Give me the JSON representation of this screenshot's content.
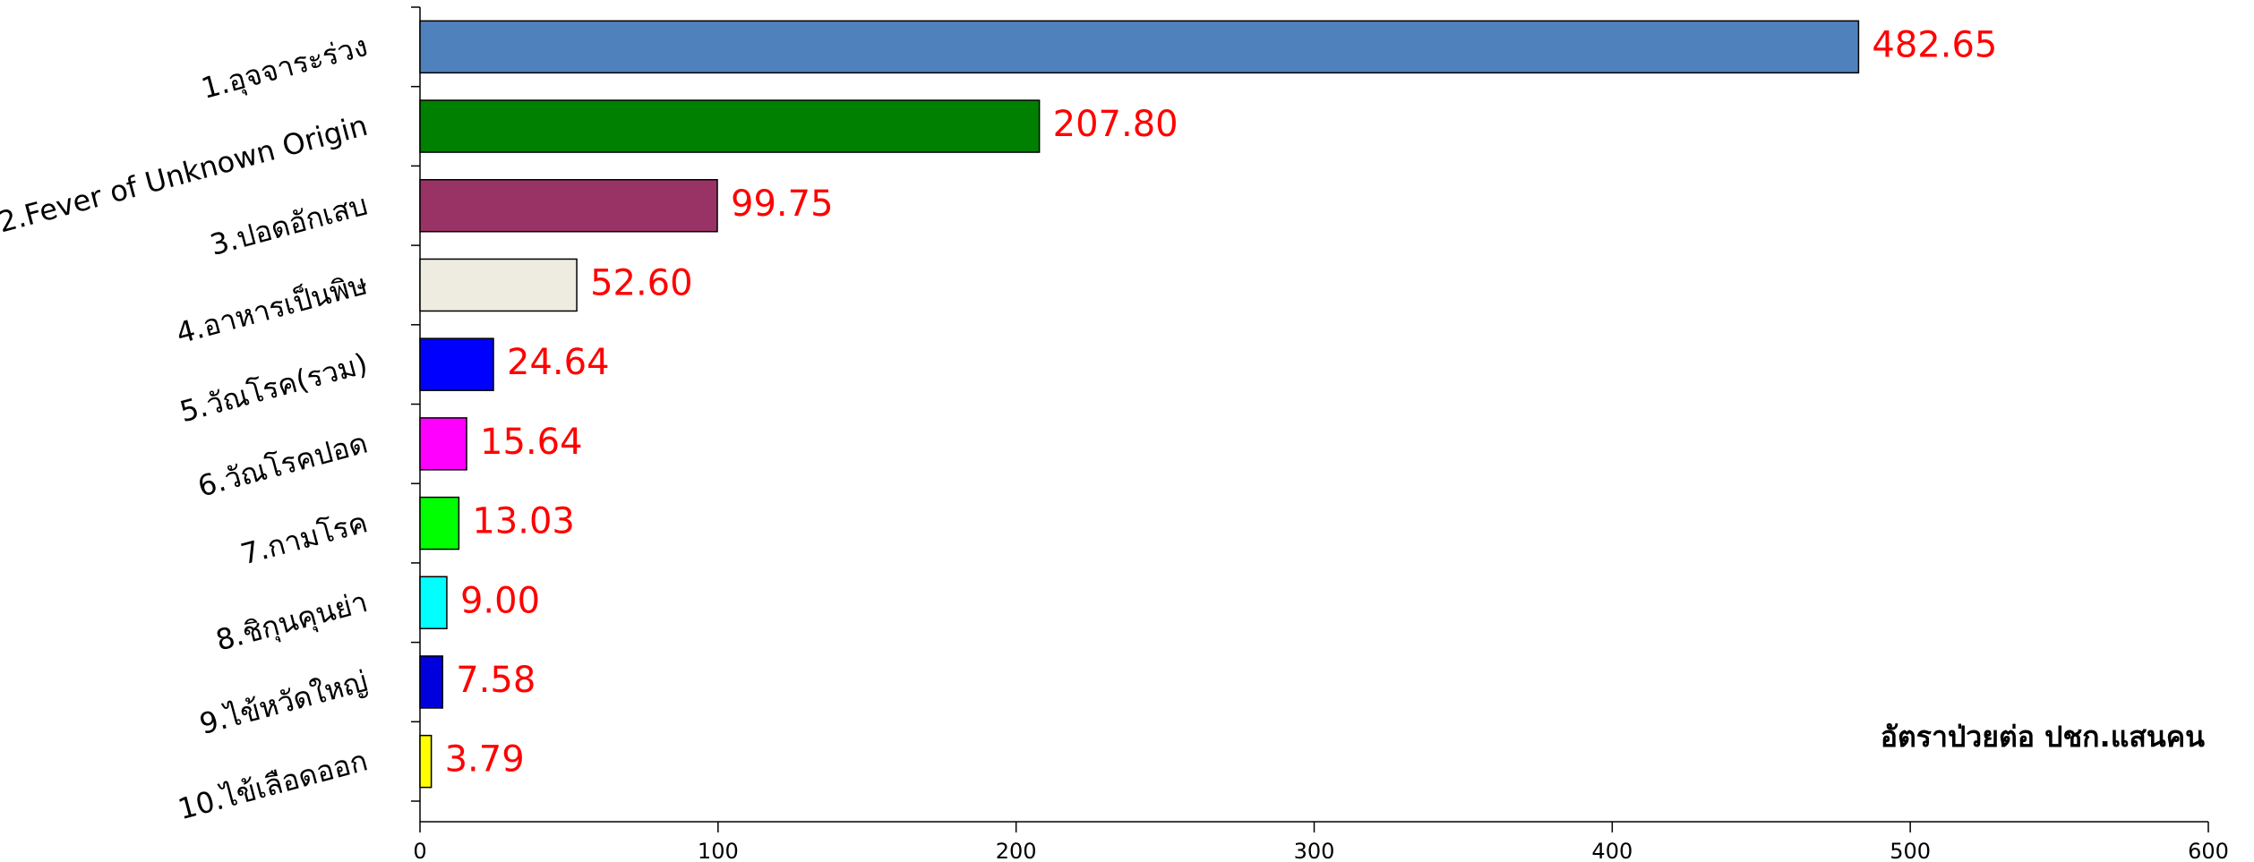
{
  "chart_data": {
    "type": "barh",
    "categories": [
      "1.อุจจาระร่วง",
      "2.Fever of Unknown Origin",
      "3.ปอดอักเสบ",
      "4.อาหารเป็นพิษ",
      "5.วัณโรค(รวม)",
      "6.วัณโรคปอด",
      "7.กามโรค",
      "8.ชิกุนคุนย่า",
      "9.ไข้หวัดใหญ่",
      "10.ไข้เลือดออก"
    ],
    "values": [
      482.65,
      207.8,
      99.75,
      52.6,
      24.64,
      15.64,
      13.03,
      9.0,
      7.58,
      3.79
    ],
    "value_labels": [
      "482.65",
      "207.80",
      "99.75",
      "52.60",
      "24.64",
      "15.64",
      "13.03",
      "9.00",
      "7.58",
      "3.79"
    ],
    "colors": [
      "#4f81bd",
      "#008000",
      "#993366",
      "#eeece1",
      "#0000ff",
      "#ff00ff",
      "#00ff00",
      "#00ffff",
      "#0000dd",
      "#ffff00"
    ],
    "label_color": "#ff0000",
    "axis_note": "อัตราป่วยต่อ ปชก.แสนคน",
    "xlim": [
      0,
      600
    ],
    "xticks": [
      0,
      100,
      200,
      300,
      400,
      500,
      600
    ]
  }
}
